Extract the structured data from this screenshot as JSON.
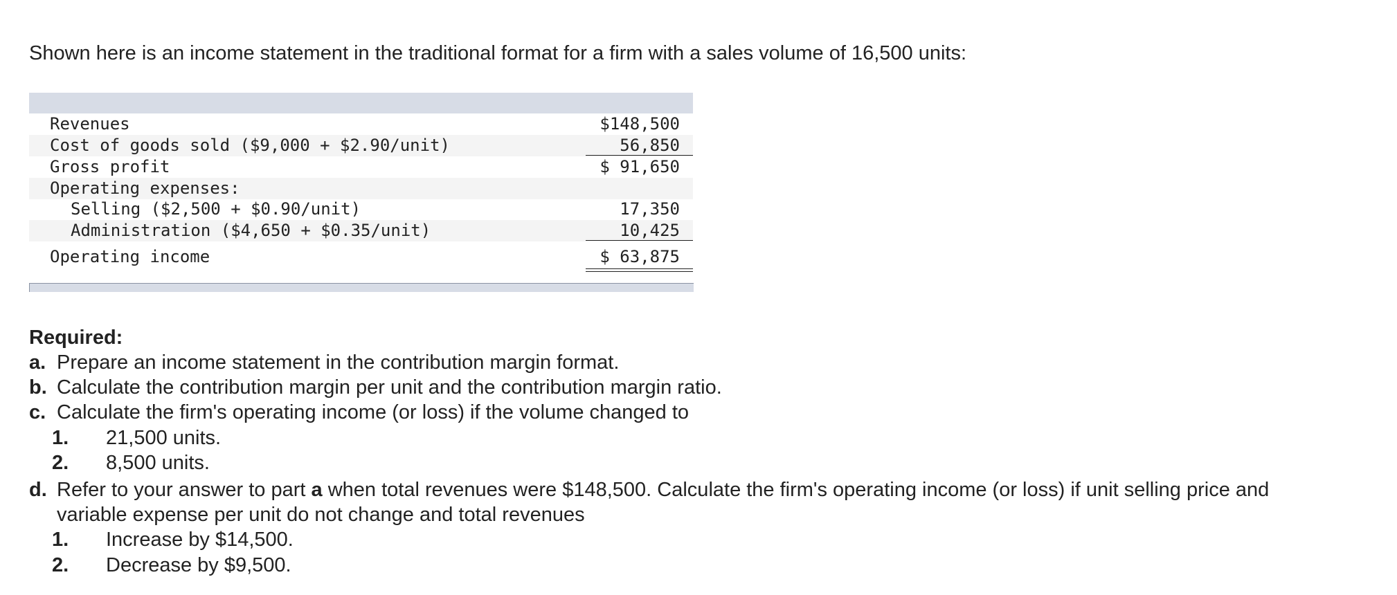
{
  "intro": "Shown here is an income statement in the traditional format for a firm with a sales volume of 16,500 units:",
  "table": {
    "rows": [
      [
        "Revenues",
        "$148,500"
      ],
      [
        "Cost of goods sold ($9,000 + $2.90/unit)",
        "56,850"
      ],
      [
        "Gross profit",
        "$ 91,650"
      ],
      [
        "Operating expenses:"
      ],
      [
        "Selling ($2,500 + $0.90/unit)",
        "17,350"
      ],
      [
        "Administration ($4,650 + $0.35/unit)",
        "10,425"
      ],
      [
        "Operating income",
        "$ 63,875"
      ]
    ]
  },
  "required": {
    "heading": "Required:",
    "items": [
      {
        "label": "a.",
        "text": "Prepare an income statement in the contribution margin format."
      },
      {
        "label": "b.",
        "text": "Calculate the contribution margin per unit and the contribution margin ratio."
      },
      {
        "label": "c.",
        "text": "Calculate the firm's operating income (or loss) if the volume changed to",
        "subitems": [
          {
            "label": "1.",
            "text": "21,500 units."
          },
          {
            "label": "2.",
            "text": "8,500 units."
          }
        ]
      },
      {
        "label": "d.",
        "text_parts": [
          "Refer to your answer to part ",
          "a",
          " when total revenues were $148,500. Calculate the firm's operating income (or loss) if unit selling price and variable expense per unit do not change and total revenues"
        ],
        "subitems": [
          {
            "label": "1.",
            "text": "Increase by $14,500."
          },
          {
            "label": "2.",
            "text": "Decrease by $9,500."
          }
        ]
      }
    ]
  }
}
